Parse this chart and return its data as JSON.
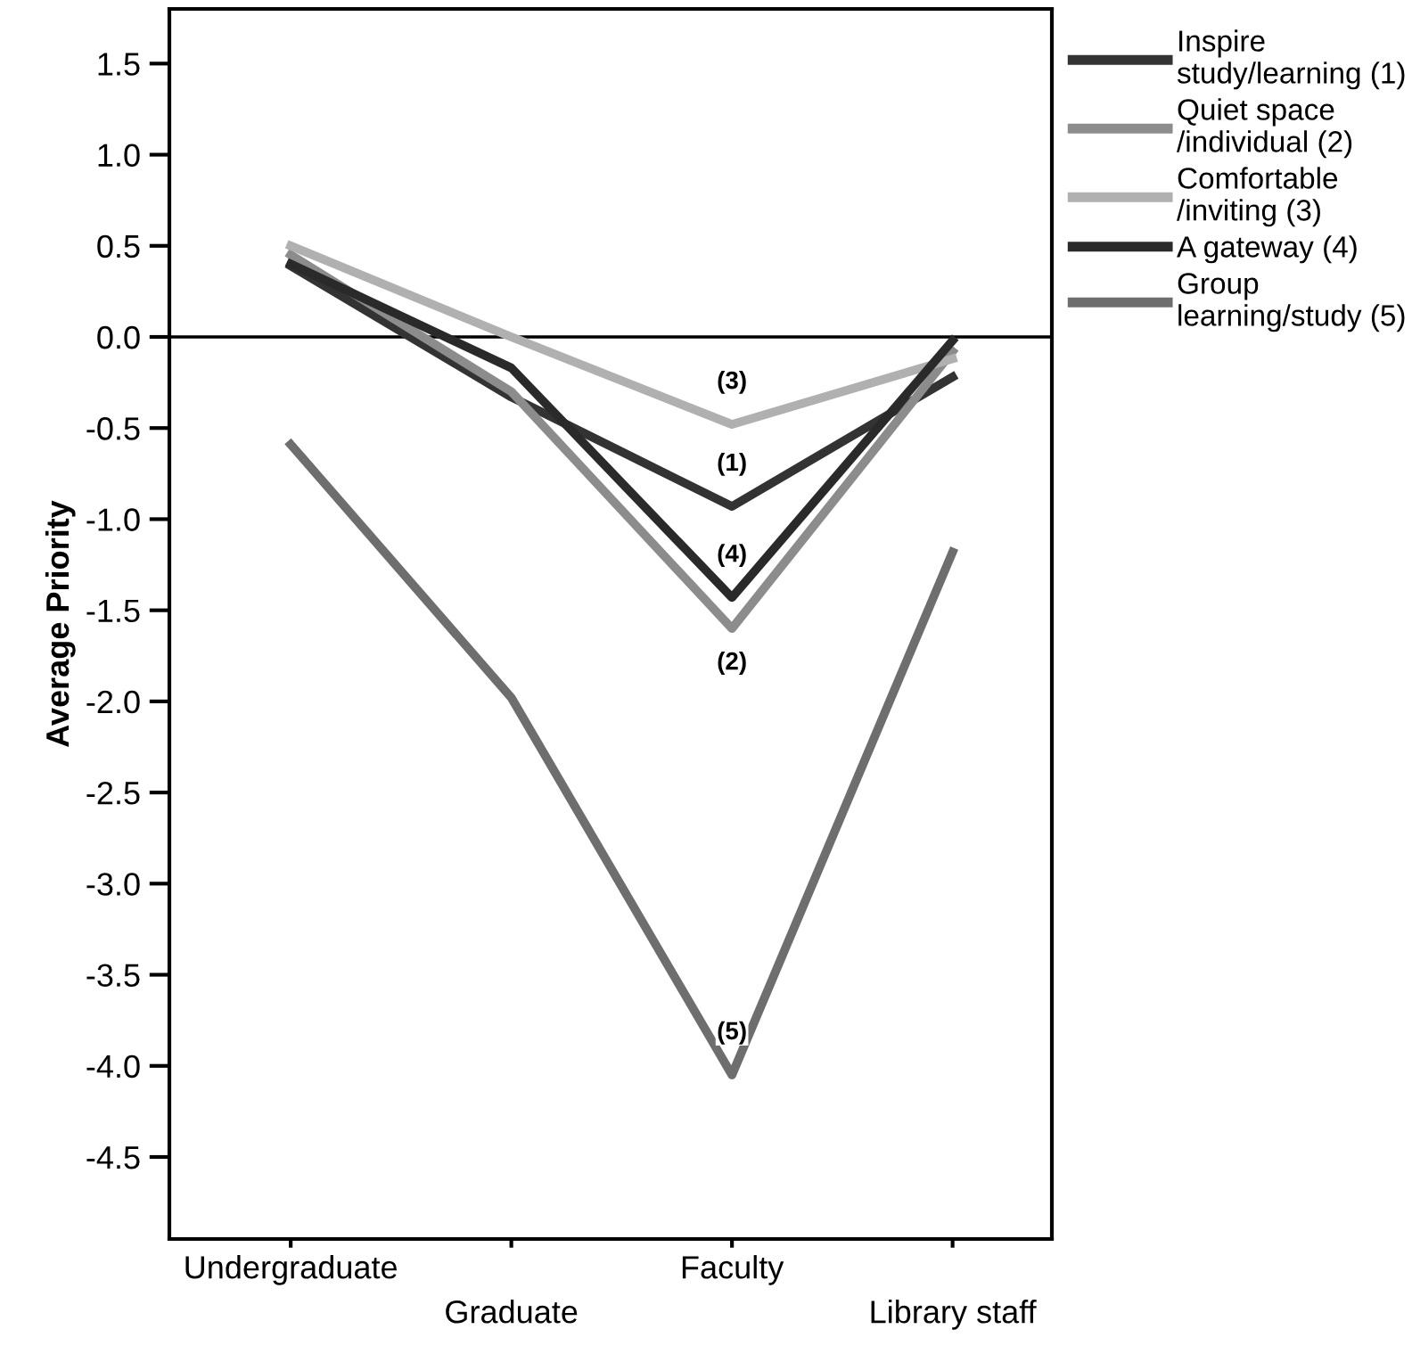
{
  "chart_data": {
    "type": "line",
    "ylabel": "Average Priority",
    "categories": [
      "Undergraduate",
      "Graduate",
      "Faculty",
      "Library staff"
    ],
    "series": [
      {
        "name": "Inspire\nstudy/learning (1)",
        "color": "#333333",
        "values": [
          0.39,
          -0.33,
          -0.93,
          -0.22
        ]
      },
      {
        "name": "Quiet space\n/individual (2)",
        "color": "#8c8c8c",
        "values": [
          0.45,
          -0.3,
          -1.6,
          -0.08
        ]
      },
      {
        "name": "Comfortable\n/inviting (3)",
        "color": "#b0b0b0",
        "values": [
          0.5,
          0.0,
          -0.48,
          -0.12
        ]
      },
      {
        "name": "A gateway (4)",
        "color": "#2a2a2a",
        "values": [
          0.4,
          -0.17,
          -1.43,
          -0.02
        ]
      },
      {
        "name": "Group\nlearning/study (5)",
        "color": "#6e6e6e",
        "values": [
          -0.59,
          -1.98,
          -4.05,
          -1.18
        ]
      }
    ],
    "ylim": [
      -4.95,
      1.8
    ],
    "yticks": [
      1.5,
      {
        "value": 1,
        "label": "1.0"
      },
      0.5,
      {
        "value": 0,
        "label": "0.0"
      },
      -0.5,
      {
        "value": -1,
        "label": "-1.0"
      },
      -1.5,
      {
        "value": -2,
        "label": "-2.0"
      },
      -2.5,
      {
        "value": -3,
        "label": "-3.0"
      },
      -3.5,
      {
        "value": -4,
        "label": "-4.0"
      },
      -4.5
    ],
    "ref_lines": [
      {
        "axis": "y",
        "value": 0,
        "color": "#000000"
      }
    ],
    "annotations": [
      {
        "text": "(3)",
        "x": "Faculty",
        "y": -0.48
      },
      {
        "text": "(1)",
        "x": "Faculty",
        "y": -0.93
      },
      {
        "text": "(4)",
        "x": "Faculty",
        "y": -1.43
      },
      {
        "text": "(2)",
        "x": "Faculty",
        "y": -1.6
      },
      {
        "text": "(5)",
        "x": "Faculty",
        "y": -4.05
      }
    ],
    "legend": "top right",
    "grid": false,
    "marker": "none",
    "line_style": "solid"
  }
}
